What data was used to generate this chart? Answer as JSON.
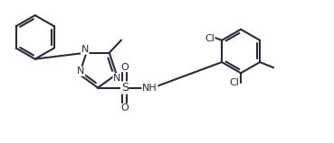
{
  "bg_color": "#ffffff",
  "line_color": "#2a2a3a",
  "line_width": 1.5,
  "font_size": 8.0,
  "figsize": [
    3.69,
    1.59
  ],
  "dpi": 100,
  "xlim": [
    0.0,
    10.5
  ],
  "ylim": [
    0.0,
    4.5
  ]
}
